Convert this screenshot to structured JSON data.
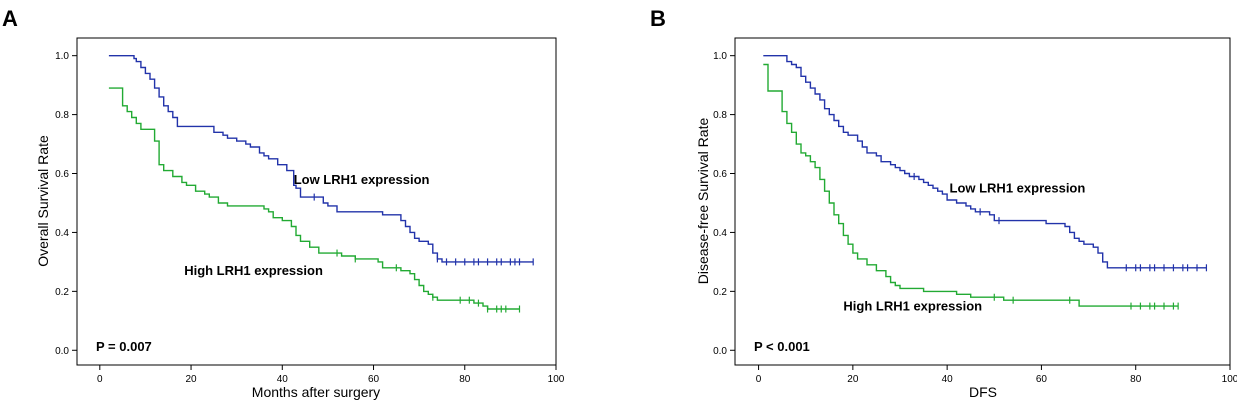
{
  "chart_data": [
    {
      "type": "line",
      "subtype": "kaplan-meier",
      "panel": "A",
      "title": "",
      "xlabel": "Months after surgery",
      "ylabel": "Overall Survival Rate",
      "xlim": [
        -5,
        100
      ],
      "ylim": [
        -0.05,
        1.06
      ],
      "xticks": [
        0,
        20,
        40,
        60,
        80,
        100
      ],
      "yticks": [
        0.0,
        0.2,
        0.4,
        0.6,
        0.8,
        1.0
      ],
      "xtick_labels": [
        "0",
        "20",
        "40",
        "60",
        "80",
        "100"
      ],
      "ytick_labels": [
        "0.0",
        "0.2",
        "0.4",
        "0.6",
        "0.8",
        "1.0"
      ],
      "p_value_text": "P = 0.007",
      "series": [
        {
          "name": "Low LRH1 expression",
          "label": "Low LRH1 expression",
          "label_position": [
            42.5,
            0.565
          ],
          "color": "#2233aa",
          "points": [
            [
              2,
              1.0
            ],
            [
              7,
              1.0
            ],
            [
              7.5,
              0.99
            ],
            [
              8,
              0.98
            ],
            [
              9,
              0.96
            ],
            [
              10,
              0.94
            ],
            [
              11,
              0.92
            ],
            [
              12,
              0.89
            ],
            [
              13,
              0.86
            ],
            [
              14,
              0.83
            ],
            [
              15,
              0.81
            ],
            [
              16,
              0.79
            ],
            [
              17,
              0.76
            ],
            [
              25,
              0.76
            ],
            [
              25,
              0.74
            ],
            [
              27,
              0.73
            ],
            [
              28,
              0.72
            ],
            [
              30,
              0.71
            ],
            [
              32,
              0.7
            ],
            [
              33,
              0.69
            ],
            [
              35,
              0.67
            ],
            [
              36,
              0.66
            ],
            [
              37,
              0.65
            ],
            [
              39,
              0.63
            ],
            [
              40,
              0.63
            ],
            [
              41,
              0.61
            ],
            [
              42,
              0.61
            ],
            [
              42.5,
              0.56
            ],
            [
              43,
              0.55
            ],
            [
              44,
              0.52
            ],
            [
              48,
              0.52
            ],
            [
              49,
              0.5
            ],
            [
              50,
              0.49
            ],
            [
              52,
              0.47
            ],
            [
              62,
              0.47
            ],
            [
              62,
              0.46
            ],
            [
              65,
              0.46
            ],
            [
              66,
              0.44
            ],
            [
              67,
              0.42
            ],
            [
              68,
              0.4
            ],
            [
              69,
              0.38
            ],
            [
              70,
              0.37
            ],
            [
              72,
              0.36
            ],
            [
              73,
              0.33
            ],
            [
              74,
              0.31
            ],
            [
              75,
              0.3
            ],
            [
              95,
              0.3
            ]
          ],
          "censored_x": [
            47,
            74,
            76,
            78,
            80,
            82,
            83,
            85,
            87,
            88,
            90,
            91,
            92,
            95
          ]
        },
        {
          "name": "High LRH1 expression",
          "label": "High LRH1 expression",
          "label_position": [
            18.5,
            0.255
          ],
          "color": "#22aa33",
          "points": [
            [
              2,
              0.89
            ],
            [
              5,
              0.89
            ],
            [
              5,
              0.83
            ],
            [
              6,
              0.81
            ],
            [
              7,
              0.79
            ],
            [
              8,
              0.77
            ],
            [
              9,
              0.75
            ],
            [
              12,
              0.75
            ],
            [
              12,
              0.71
            ],
            [
              13,
              0.66
            ],
            [
              13,
              0.63
            ],
            [
              14,
              0.61
            ],
            [
              16,
              0.59
            ],
            [
              18,
              0.57
            ],
            [
              19,
              0.56
            ],
            [
              21,
              0.54
            ],
            [
              23,
              0.53
            ],
            [
              24,
              0.52
            ],
            [
              26,
              0.5
            ],
            [
              28,
              0.49
            ],
            [
              35,
              0.49
            ],
            [
              36,
              0.48
            ],
            [
              37,
              0.47
            ],
            [
              38,
              0.45
            ],
            [
              40,
              0.44
            ],
            [
              42,
              0.42
            ],
            [
              43,
              0.39
            ],
            [
              44,
              0.37
            ],
            [
              46,
              0.35
            ],
            [
              48,
              0.33
            ],
            [
              52,
              0.33
            ],
            [
              53,
              0.32
            ],
            [
              55,
              0.32
            ],
            [
              56,
              0.31
            ],
            [
              60,
              0.31
            ],
            [
              61,
              0.3
            ],
            [
              62,
              0.28
            ],
            [
              64,
              0.28
            ],
            [
              66,
              0.27
            ],
            [
              68,
              0.26
            ],
            [
              69,
              0.24
            ],
            [
              70,
              0.22
            ],
            [
              71,
              0.2
            ],
            [
              72,
              0.19
            ],
            [
              73,
              0.18
            ],
            [
              74,
              0.17
            ],
            [
              79,
              0.17
            ],
            [
              82,
              0.16
            ],
            [
              84,
              0.15
            ],
            [
              85,
              0.14
            ],
            [
              92,
              0.14
            ]
          ],
          "censored_x": [
            52,
            56,
            65,
            73,
            79,
            81,
            83,
            85,
            87,
            88,
            89,
            92
          ]
        }
      ]
    },
    {
      "type": "line",
      "subtype": "kaplan-meier",
      "panel": "B",
      "title": "",
      "xlabel": "DFS",
      "ylabel": "Disease-free Survival Rate",
      "xlim": [
        -5,
        100
      ],
      "ylim": [
        -0.05,
        1.06
      ],
      "xticks": [
        0,
        20,
        40,
        60,
        80,
        100
      ],
      "yticks": [
        0.0,
        0.2,
        0.4,
        0.6,
        0.8,
        1.0
      ],
      "xtick_labels": [
        "0",
        "20",
        "40",
        "60",
        "80",
        "100"
      ],
      "ytick_labels": [
        "0.0",
        "0.2",
        "0.4",
        "0.6",
        "0.8",
        "1.0"
      ],
      "p_value_text": "P < 0.001",
      "series": [
        {
          "name": "Low LRH1 expression",
          "label": "Low LRH1 expression",
          "label_position": [
            40.5,
            0.535
          ],
          "color": "#2233aa",
          "points": [
            [
              1,
              1.0
            ],
            [
              5,
              1.0
            ],
            [
              6,
              0.98
            ],
            [
              7,
              0.97
            ],
            [
              8,
              0.96
            ],
            [
              9,
              0.93
            ],
            [
              10,
              0.91
            ],
            [
              11,
              0.89
            ],
            [
              12,
              0.87
            ],
            [
              13,
              0.85
            ],
            [
              14,
              0.82
            ],
            [
              15,
              0.8
            ],
            [
              16,
              0.78
            ],
            [
              17,
              0.76
            ],
            [
              18,
              0.74
            ],
            [
              19,
              0.73
            ],
            [
              21,
              0.71
            ],
            [
              22,
              0.69
            ],
            [
              23,
              0.67
            ],
            [
              25,
              0.66
            ],
            [
              26,
              0.64
            ],
            [
              28,
              0.63
            ],
            [
              29,
              0.62
            ],
            [
              30,
              0.61
            ],
            [
              31,
              0.6
            ],
            [
              32,
              0.59
            ],
            [
              34,
              0.58
            ],
            [
              35,
              0.57
            ],
            [
              36,
              0.56
            ],
            [
              37,
              0.55
            ],
            [
              38,
              0.54
            ],
            [
              39,
              0.53
            ],
            [
              40,
              0.51
            ],
            [
              42,
              0.5
            ],
            [
              44,
              0.49
            ],
            [
              45,
              0.48
            ],
            [
              46,
              0.47
            ],
            [
              48,
              0.47
            ],
            [
              49,
              0.46
            ],
            [
              50,
              0.44
            ],
            [
              52,
              0.44
            ],
            [
              60,
              0.44
            ],
            [
              61,
              0.43
            ],
            [
              62,
              0.43
            ],
            [
              65,
              0.42
            ],
            [
              66,
              0.4
            ],
            [
              67,
              0.38
            ],
            [
              68,
              0.37
            ],
            [
              69,
              0.36
            ],
            [
              71,
              0.35
            ],
            [
              72,
              0.33
            ],
            [
              73,
              0.3
            ],
            [
              74,
              0.28
            ],
            [
              95,
              0.28
            ]
          ],
          "censored_x": [
            33,
            47,
            51,
            78,
            80,
            81,
            83,
            84,
            86,
            88,
            90,
            91,
            93,
            95
          ]
        },
        {
          "name": "High LRH1 expression",
          "label": "High LRH1 expression",
          "label_position": [
            18,
            0.135
          ],
          "color": "#22aa33",
          "points": [
            [
              1,
              0.97
            ],
            [
              2,
              0.97
            ],
            [
              2,
              0.88
            ],
            [
              4,
              0.88
            ],
            [
              5,
              0.81
            ],
            [
              6,
              0.77
            ],
            [
              7,
              0.74
            ],
            [
              8,
              0.7
            ],
            [
              9,
              0.67
            ],
            [
              10,
              0.66
            ],
            [
              11,
              0.64
            ],
            [
              12,
              0.62
            ],
            [
              13,
              0.58
            ],
            [
              14,
              0.54
            ],
            [
              15,
              0.5
            ],
            [
              16,
              0.46
            ],
            [
              17,
              0.43
            ],
            [
              18,
              0.39
            ],
            [
              19,
              0.36
            ],
            [
              20,
              0.33
            ],
            [
              21,
              0.31
            ],
            [
              23,
              0.29
            ],
            [
              25,
              0.27
            ],
            [
              27,
              0.25
            ],
            [
              28,
              0.23
            ],
            [
              29,
              0.22
            ],
            [
              30,
              0.21
            ],
            [
              34,
              0.21
            ],
            [
              35,
              0.2
            ],
            [
              41,
              0.2
            ],
            [
              42,
              0.19
            ],
            [
              44,
              0.19
            ],
            [
              45,
              0.18
            ],
            [
              51,
              0.18
            ],
            [
              52,
              0.17
            ],
            [
              68,
              0.17
            ],
            [
              68,
              0.15
            ],
            [
              89,
              0.15
            ]
          ],
          "censored_x": [
            50,
            54,
            66,
            79,
            81,
            83,
            84,
            86,
            88,
            89
          ]
        }
      ]
    }
  ]
}
